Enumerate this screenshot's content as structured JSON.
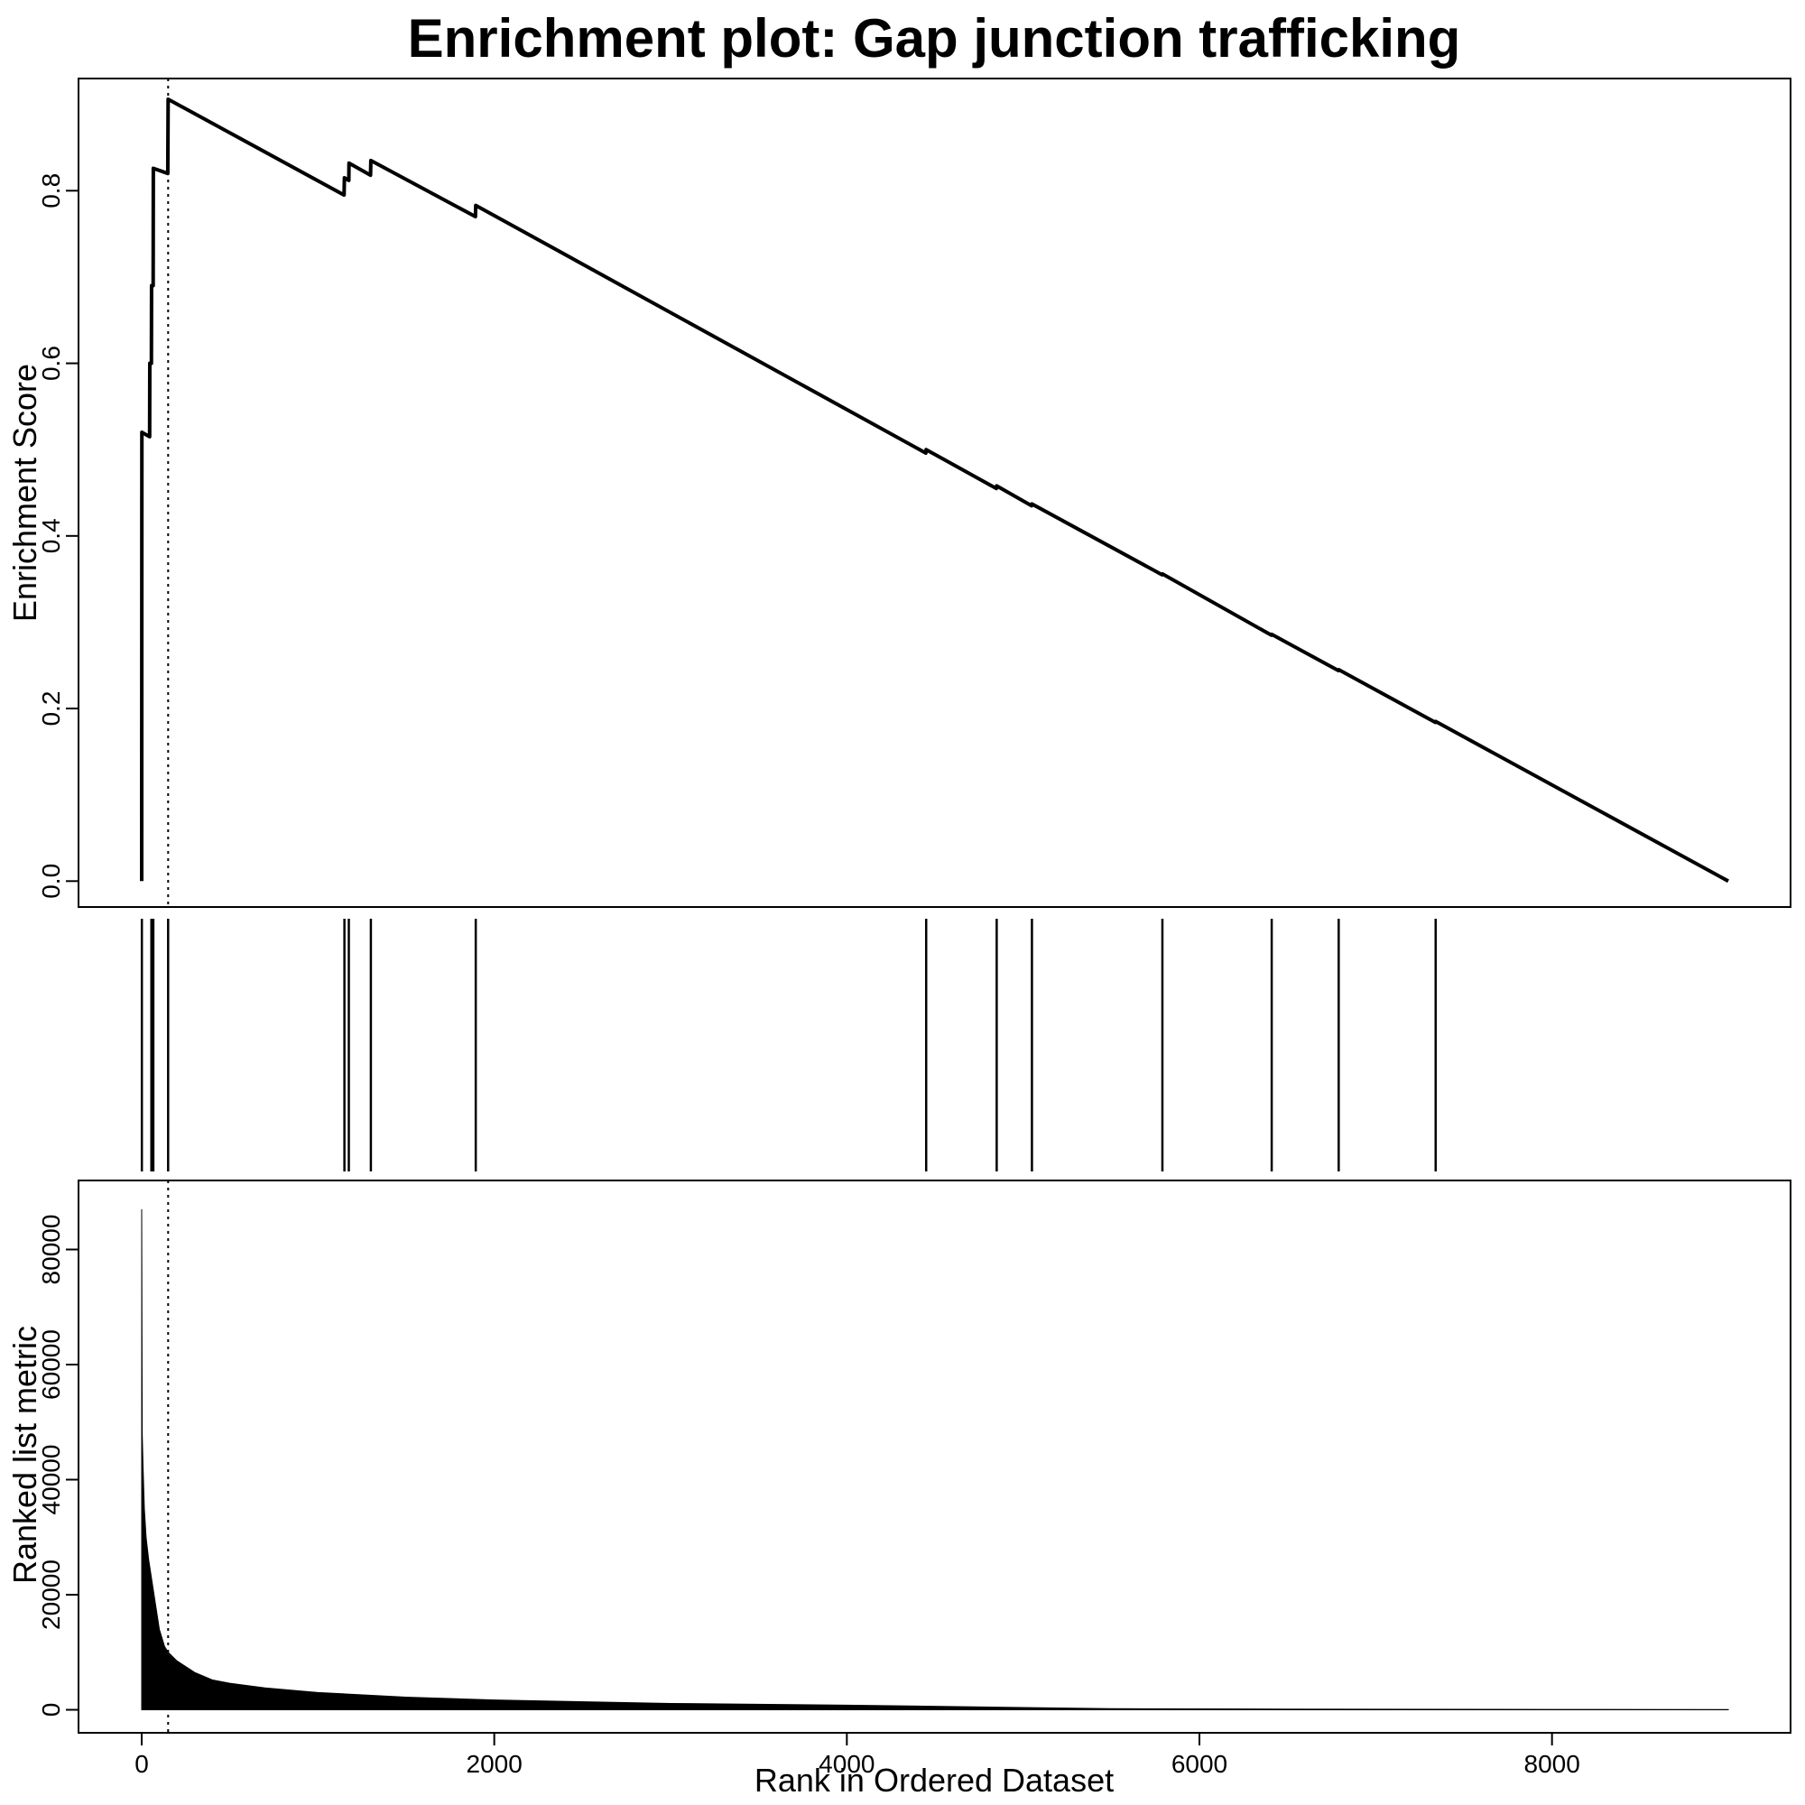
{
  "chart_data": {
    "title": "Enrichment plot: Gap junction trafficking",
    "x_axis": {
      "label": "Rank in Ordered Dataset",
      "range": [
        0,
        9000
      ],
      "ticks": [
        0,
        2000,
        4000,
        6000,
        8000
      ],
      "tick_labels": [
        "0",
        "2000",
        "4000",
        "6000",
        "8000"
      ]
    },
    "leading_edge_rank": 150,
    "panels": [
      {
        "type": "line",
        "name": "enrichment-score",
        "ylabel": "Enrichment Score",
        "ylim": [
          -0.03,
          0.93
        ],
        "yticks": [
          0.0,
          0.2,
          0.4,
          0.6,
          0.8
        ],
        "ytick_labels": [
          "0.0",
          "0.2",
          "0.4",
          "0.6",
          "0.8"
        ],
        "points": [
          [
            0,
            0.0
          ],
          [
            1,
            0.52
          ],
          [
            45,
            0.515
          ],
          [
            46,
            0.6
          ],
          [
            55,
            0.6
          ],
          [
            56,
            0.69
          ],
          [
            65,
            0.69
          ],
          [
            66,
            0.826
          ],
          [
            148,
            0.82
          ],
          [
            150,
            0.906
          ],
          [
            1148,
            0.795
          ],
          [
            1150,
            0.815
          ],
          [
            1175,
            0.812
          ],
          [
            1176,
            0.832
          ],
          [
            1298,
            0.818
          ],
          [
            1300,
            0.835
          ],
          [
            1893,
            0.77
          ],
          [
            1895,
            0.783
          ],
          [
            4448,
            0.496
          ],
          [
            4450,
            0.5
          ],
          [
            4848,
            0.455
          ],
          [
            4850,
            0.458
          ],
          [
            5048,
            0.435
          ],
          [
            5050,
            0.437
          ],
          [
            5788,
            0.355
          ],
          [
            5790,
            0.356
          ],
          [
            6408,
            0.285
          ],
          [
            6410,
            0.286
          ],
          [
            6788,
            0.244
          ],
          [
            6790,
            0.245
          ],
          [
            7338,
            0.184
          ],
          [
            7340,
            0.185
          ],
          [
            9000,
            0.0
          ]
        ]
      },
      {
        "type": "hits",
        "name": "gene-hits",
        "ranks": [
          1,
          55,
          66,
          150,
          1150,
          1175,
          1300,
          1895,
          4450,
          4850,
          5050,
          5790,
          6410,
          6790,
          7340
        ]
      },
      {
        "type": "area",
        "name": "ranked-list-metric",
        "ylabel": "Ranked list metric",
        "ylim": [
          -4000,
          92000
        ],
        "yticks": [
          0,
          20000,
          40000,
          60000,
          80000
        ],
        "ytick_labels": [
          "0",
          "20000",
          "40000",
          "60000",
          "80000"
        ],
        "points": [
          [
            0,
            87000
          ],
          [
            3,
            48000
          ],
          [
            8,
            42000
          ],
          [
            15,
            35000
          ],
          [
            25,
            30000
          ],
          [
            40,
            26000
          ],
          [
            60,
            22000
          ],
          [
            80,
            18000
          ],
          [
            100,
            14000
          ],
          [
            130,
            11000
          ],
          [
            150,
            10000
          ],
          [
            200,
            8500
          ],
          [
            300,
            6500
          ],
          [
            400,
            5200
          ],
          [
            500,
            4600
          ],
          [
            700,
            3800
          ],
          [
            1000,
            3000
          ],
          [
            1500,
            2200
          ],
          [
            2000,
            1700
          ],
          [
            3000,
            1100
          ],
          [
            4000,
            800
          ],
          [
            5000,
            400
          ],
          [
            5500,
            200
          ],
          [
            6500,
            120
          ],
          [
            8000,
            60
          ],
          [
            9000,
            30
          ]
        ]
      }
    ]
  }
}
